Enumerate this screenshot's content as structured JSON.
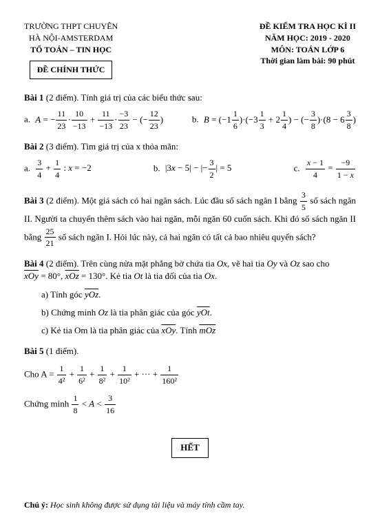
{
  "header": {
    "left1": "TRƯỜNG THPT CHUYÊN",
    "left2": "HÀ NỘI-AMSTERDAM",
    "left3": "TỔ TOÁN – TIN HỌC",
    "right1": "ĐỀ KIỂM TRA HỌC KÌ II",
    "right2": "NĂM HỌC: 2019 - 2020",
    "right3": "MÔN: TOÁN LỚP 6",
    "right4": "Thời gian làm bài: 90 phút",
    "official": "ĐỀ CHÍNH THỨC"
  },
  "p1": {
    "title": "Bài 1",
    "points": "(2 điểm).",
    "text": "Tính giá trị của các biểu thức sau:",
    "a_label": "a.",
    "a_expr": "A = −(11/23)·(10/−13) + (11/−13)·(−3/23) − (−12/23)",
    "b_label": "b.",
    "b_expr": "B = (−1 1/6)·(−3 1/3 + 2 1/4) − (−3/8)·(8 − 6 3/8)"
  },
  "p2": {
    "title": "Bài 2",
    "points": "(3 điểm).",
    "text": "Tìm giá trị của x thỏa mãn:",
    "a_label": "a.",
    "a_expr": "3/4 + 1/4 : x = −2",
    "b_label": "b.",
    "b_expr": "|3x − 5| − |−3/2| = 5",
    "c_label": "c.",
    "c_expr": "(x−1)/4 = −9/(1−x)"
  },
  "p3": {
    "title": "Bài 3",
    "points": "(2 điểm).",
    "text1": "Một giá sách có hai ngăn sách. Lúc đầu số sách ngăn I bằng ",
    "frac_num": "3",
    "frac_den": "5",
    "text2": " số sách ngăn II. Người ta chuyển thêm sách vào hai ngăn, mỗi ngăn 60 cuốn sách. Khi đó số sách ngăn II bằng ",
    "frac2_num": "25",
    "frac2_den": "21",
    "text3": " số sách ngăn I. Hỏi lúc này, cả hai ngăn có tất cả bao nhiêu quyển sách?"
  },
  "p4": {
    "title": "Bài 4",
    "points": "(2 điểm).",
    "line1a": "Trên cùng nửa mặt phẳng bờ chứa tia ",
    "Ox": "Ox",
    "line1b": ", vẽ hai tia ",
    "Oy": "Oy",
    "line1c": " và ",
    "Oz": "Oz",
    "line1d": " sao cho",
    "line2a": "x̂Oy = 80°, x̂Oz = 130°. Kẻ tia ",
    "Ot": "Ot",
    "line2b": " là tia đối của tia ",
    "line2c": ".",
    "sub_a": "a) Tính góc ŷOz.",
    "sub_b": "b) Chứng minh Oz là tia phân giác của góc ŷOt.",
    "sub_c": "c) Kẻ tia Om là tia phân giác của x̂Oy. Tính m̂Oz"
  },
  "p5": {
    "title": "Bài 5",
    "points": "(1 điểm).",
    "line1": "Cho A = 1/4² + 1/6² + 1/8² + 1/10² + ··· + 1/160²",
    "line2": "Chứng minh 1/8 < A < 3/16"
  },
  "end": "HẾT",
  "note_bold": "Chú ý:",
  "note_text": " Học sinh không được sử dụng tài liệu và máy tính cầm tay."
}
